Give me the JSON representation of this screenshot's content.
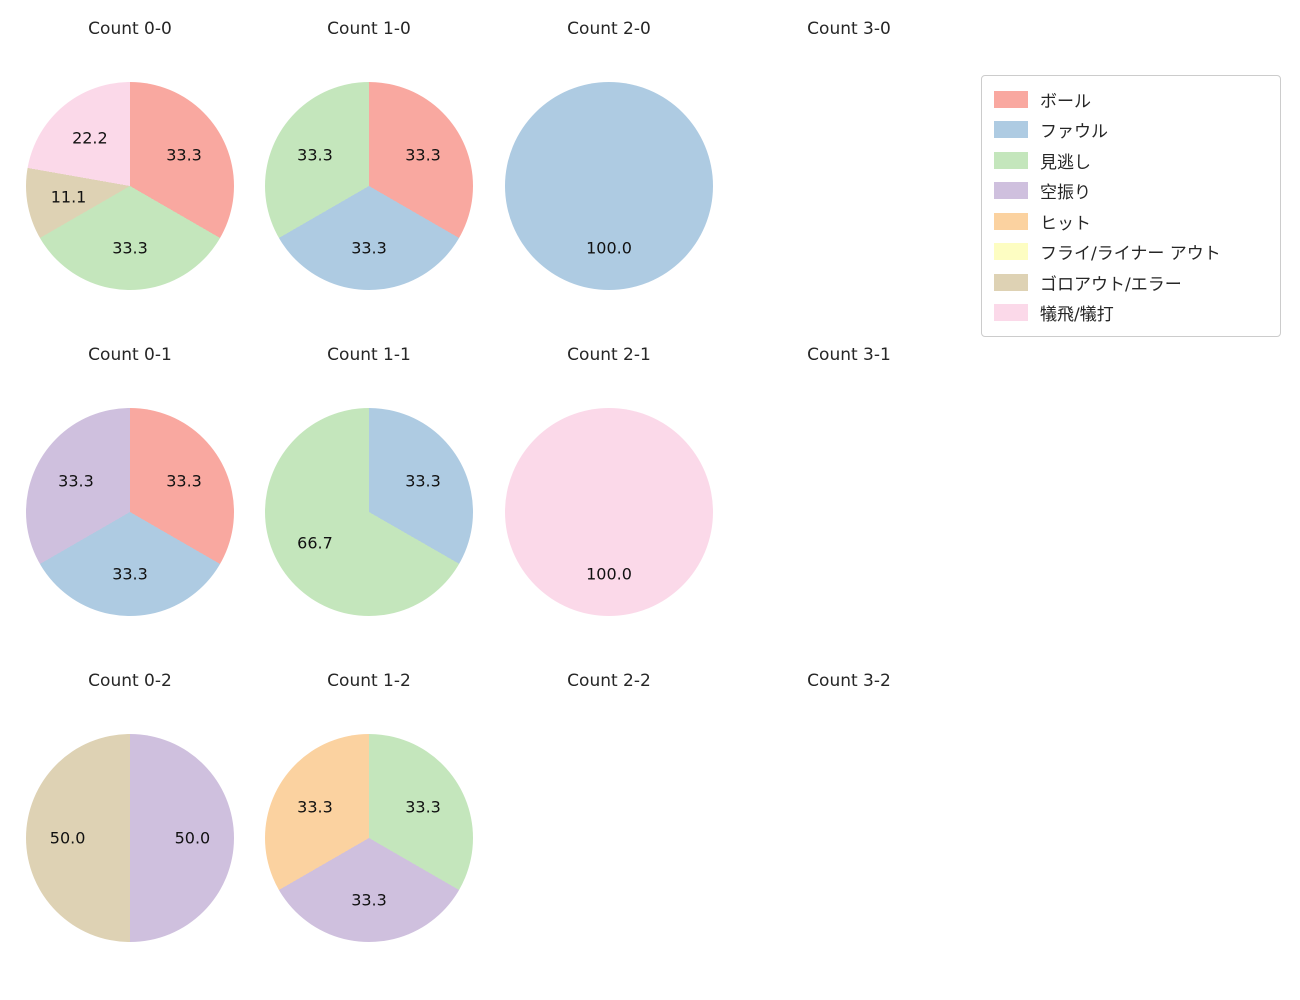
{
  "figure": {
    "background_color": "#ffffff",
    "text_color": "#262626"
  },
  "legend": {
    "position": "upper right",
    "items": [
      {
        "label": "ボール",
        "color": "#f9a8a0"
      },
      {
        "label": "ファウル",
        "color": "#aecbe2"
      },
      {
        "label": "見逃し",
        "color": "#c4e6bc"
      },
      {
        "label": "空振り",
        "color": "#cfc0de"
      },
      {
        "label": "ヒット",
        "color": "#fbd2a0"
      },
      {
        "label": "フライ/ライナー アウト",
        "color": "#fdfdc2"
      },
      {
        "label": "ゴロアウト/エラー",
        "color": "#ded2b4"
      },
      {
        "label": "犠飛/犠打",
        "color": "#fbd9e9"
      }
    ]
  },
  "chart_data": [
    {
      "type": "pie",
      "title": "Count 0-0",
      "start_angle": "top",
      "direction": "clockwise",
      "slices": [
        {
          "category": "ボール",
          "value": 33.3,
          "color": "#f9a8a0"
        },
        {
          "category": "見逃し",
          "value": 33.3,
          "color": "#c4e6bc"
        },
        {
          "category": "ゴロアウト/エラー",
          "value": 11.1,
          "color": "#ded2b4"
        },
        {
          "category": "犠飛/犠打",
          "value": 22.2,
          "color": "#fbd9e9"
        }
      ]
    },
    {
      "type": "pie",
      "title": "Count 1-0",
      "start_angle": "top",
      "direction": "clockwise",
      "slices": [
        {
          "category": "ボール",
          "value": 33.3,
          "color": "#f9a8a0"
        },
        {
          "category": "ファウル",
          "value": 33.3,
          "color": "#aecbe2"
        },
        {
          "category": "見逃し",
          "value": 33.3,
          "color": "#c4e6bc"
        }
      ]
    },
    {
      "type": "pie",
      "title": "Count 2-0",
      "start_angle": "top",
      "direction": "clockwise",
      "slices": [
        {
          "category": "ファウル",
          "value": 100.0,
          "color": "#aecbe2"
        }
      ]
    },
    {
      "type": "pie",
      "title": "Count 3-0",
      "start_angle": "top",
      "direction": "clockwise",
      "slices": []
    },
    {
      "type": "pie",
      "title": "Count 0-1",
      "start_angle": "top",
      "direction": "clockwise",
      "slices": [
        {
          "category": "ボール",
          "value": 33.3,
          "color": "#f9a8a0"
        },
        {
          "category": "ファウル",
          "value": 33.3,
          "color": "#aecbe2"
        },
        {
          "category": "空振り",
          "value": 33.3,
          "color": "#cfc0de"
        }
      ]
    },
    {
      "type": "pie",
      "title": "Count 1-1",
      "start_angle": "top",
      "direction": "clockwise",
      "slices": [
        {
          "category": "ファウル",
          "value": 33.3,
          "color": "#aecbe2"
        },
        {
          "category": "見逃し",
          "value": 66.7,
          "color": "#c4e6bc"
        }
      ]
    },
    {
      "type": "pie",
      "title": "Count 2-1",
      "start_angle": "top",
      "direction": "clockwise",
      "slices": [
        {
          "category": "犠飛/犠打",
          "value": 100.0,
          "color": "#fbd9e9"
        }
      ]
    },
    {
      "type": "pie",
      "title": "Count 3-1",
      "start_angle": "top",
      "direction": "clockwise",
      "slices": []
    },
    {
      "type": "pie",
      "title": "Count 0-2",
      "start_angle": "top",
      "direction": "clockwise",
      "slices": [
        {
          "category": "空振り",
          "value": 50.0,
          "color": "#cfc0de"
        },
        {
          "category": "ゴロアウト/エラー",
          "value": 50.0,
          "color": "#ded2b4"
        }
      ]
    },
    {
      "type": "pie",
      "title": "Count 1-2",
      "start_angle": "top",
      "direction": "clockwise",
      "slices": [
        {
          "category": "見逃し",
          "value": 33.3,
          "color": "#c4e6bc"
        },
        {
          "category": "空振り",
          "value": 33.3,
          "color": "#cfc0de"
        },
        {
          "category": "ヒット",
          "value": 33.3,
          "color": "#fbd2a0"
        }
      ]
    },
    {
      "type": "pie",
      "title": "Count 2-2",
      "start_angle": "top",
      "direction": "clockwise",
      "slices": []
    },
    {
      "type": "pie",
      "title": "Count 3-2",
      "start_angle": "top",
      "direction": "clockwise",
      "slices": []
    }
  ]
}
